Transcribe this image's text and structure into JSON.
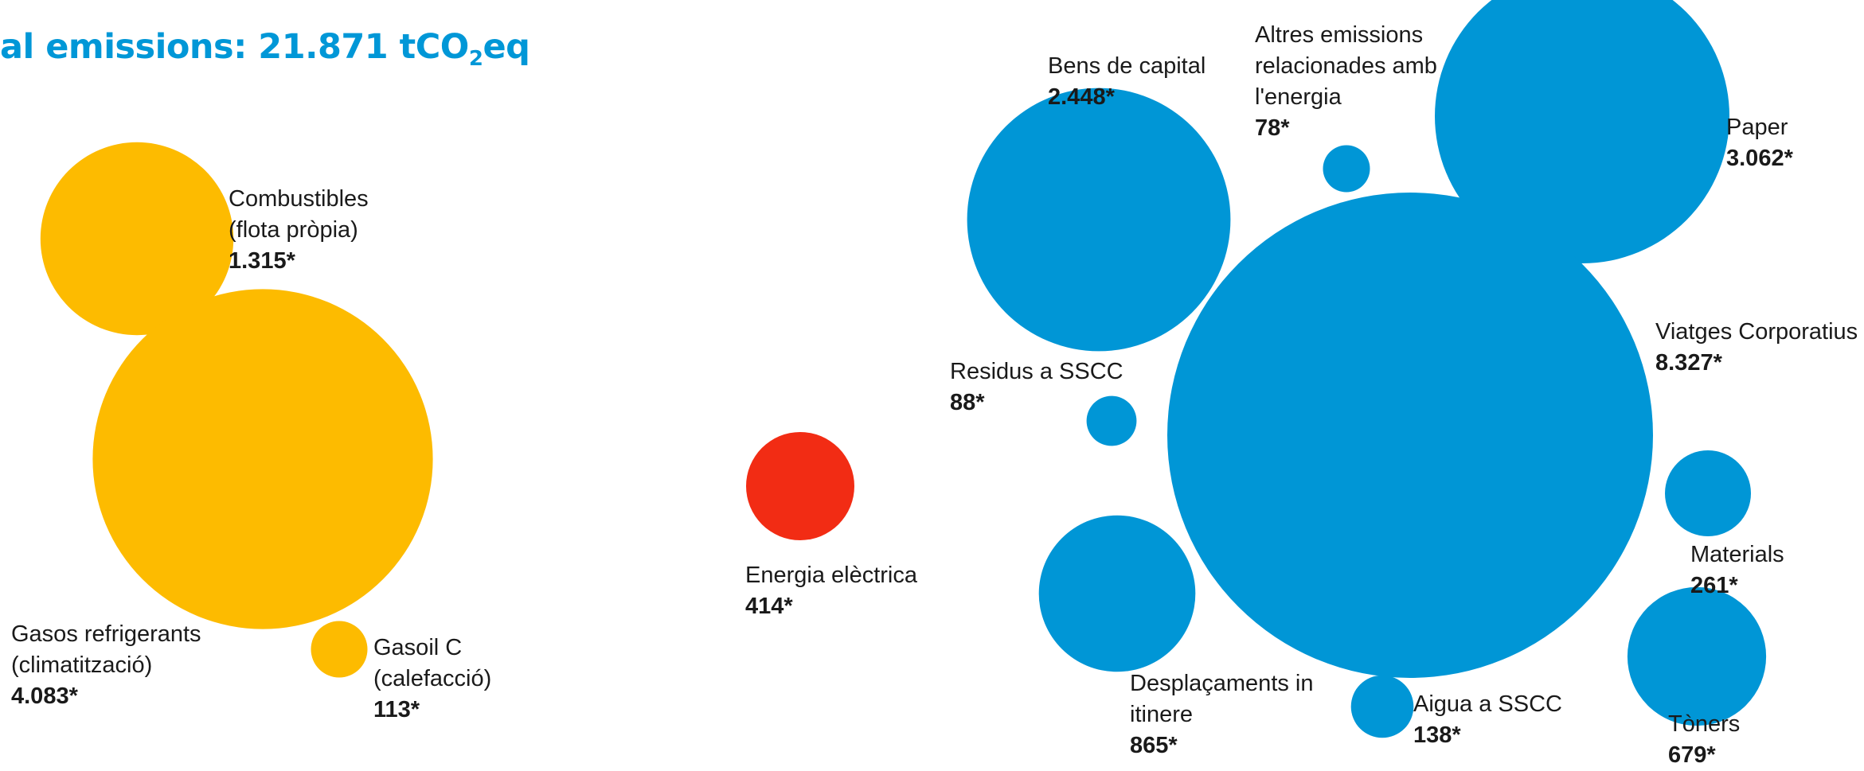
{
  "title": {
    "prefix": "al emissions: 21.871 tCO",
    "subscript": "2",
    "suffix": "eq"
  },
  "colors": {
    "yellow": "#FDBB00",
    "blue": "#0096D6",
    "red": "#F22C14",
    "title": "#0097D7"
  },
  "chart_data": {
    "type": "bubble",
    "unit": "tCO2eq",
    "bubbles": [
      {
        "id": "combustibles",
        "label_lines": [
          "Combustibles",
          "(flota pròpia)"
        ],
        "value": 1315,
        "value_label": "1.315*",
        "color": "#FDBB00"
      },
      {
        "id": "gasos",
        "label_lines": [
          "Gasos refrigerants",
          "(climatització)"
        ],
        "value": 4083,
        "value_label": "4.083*",
        "color": "#FDBB00"
      },
      {
        "id": "gasoil",
        "label_lines": [
          "Gasoil C",
          "(calefacció)"
        ],
        "value": 113,
        "value_label": "113*",
        "color": "#FDBB00"
      },
      {
        "id": "energia",
        "label_lines": [
          "Energia elèctrica"
        ],
        "value": 414,
        "value_label": "414*",
        "color": "#F22C14"
      },
      {
        "id": "bens",
        "label_lines": [
          "Bens de capital"
        ],
        "value": 2448,
        "value_label": "2.448*",
        "color": "#0096D6"
      },
      {
        "id": "altres",
        "label_lines": [
          "Altres emissions",
          "relacionades amb",
          "l'energia"
        ],
        "value": 78,
        "value_label": "78*",
        "color": "#0096D6"
      },
      {
        "id": "paper",
        "label_lines": [
          "Paper"
        ],
        "value": 3062,
        "value_label": "3.062*",
        "color": "#0096D6"
      },
      {
        "id": "viatges",
        "label_lines": [
          "Viatges Corporatius"
        ],
        "value": 8327,
        "value_label": "8.327*",
        "color": "#0096D6"
      },
      {
        "id": "residus",
        "label_lines": [
          "Residus a SSCC"
        ],
        "value": 88,
        "value_label": "88*",
        "color": "#0096D6"
      },
      {
        "id": "materials",
        "label_lines": [
          "Materials"
        ],
        "value": 261,
        "value_label": "261*",
        "color": "#0096D6"
      },
      {
        "id": "toners",
        "label_lines": [
          "Tòners"
        ],
        "value": 679,
        "value_label": "679*",
        "color": "#0096D6"
      },
      {
        "id": "aigua",
        "label_lines": [
          "Aigua a SSCC"
        ],
        "value": 138,
        "value_label": "138*",
        "color": "#0096D6"
      },
      {
        "id": "desplacaments",
        "label_lines": [
          "Desplaçaments in",
          "itinere"
        ],
        "value": 865,
        "value_label": "865*",
        "color": "#0096D6"
      }
    ]
  }
}
